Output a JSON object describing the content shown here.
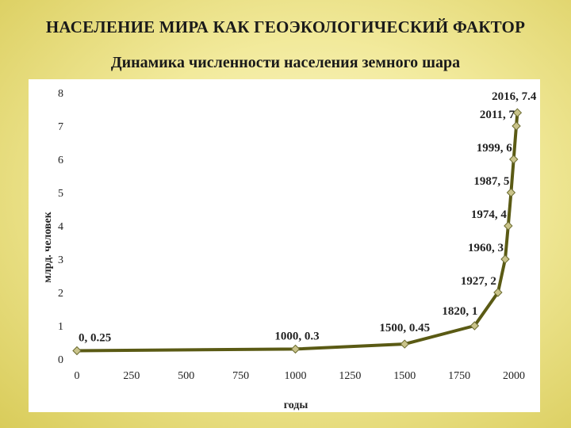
{
  "slide": {
    "title": "НАСЕЛЕНИЕ МИРА КАК ГЕОЭКОЛОГИЧЕСКИЙ ФАКТОР"
  },
  "chart_data": {
    "type": "scatter",
    "title": "Динамика численности населения земного шара",
    "xlabel": "годы",
    "ylabel": "млрд. человек",
    "xlim": [
      0,
      2000
    ],
    "ylim": [
      0,
      8
    ],
    "xticks": [
      0,
      250,
      500,
      750,
      1000,
      1250,
      1500,
      1750,
      2000
    ],
    "yticks": [
      0,
      1,
      2,
      3,
      4,
      5,
      6,
      7,
      8
    ],
    "grid": false,
    "line_color": "#5a5a14",
    "marker_color": "#c9c38a",
    "series": [
      {
        "x": [
          0,
          1000,
          1500,
          1820,
          1927,
          1960,
          1974,
          1987,
          1999,
          2011,
          2016
        ],
        "y": [
          0.25,
          0.3,
          0.45,
          1,
          2,
          3,
          4,
          5,
          6,
          7,
          7.4
        ],
        "labels": [
          "0, 0.25",
          "1000, 0.3",
          "1500, 0.45",
          "1820, 1",
          "1927, 2",
          "1960, 3",
          "1974, 4",
          "1987, 5",
          "1999, 6",
          "2011, 7",
          "2016, 7.4"
        ]
      }
    ]
  }
}
